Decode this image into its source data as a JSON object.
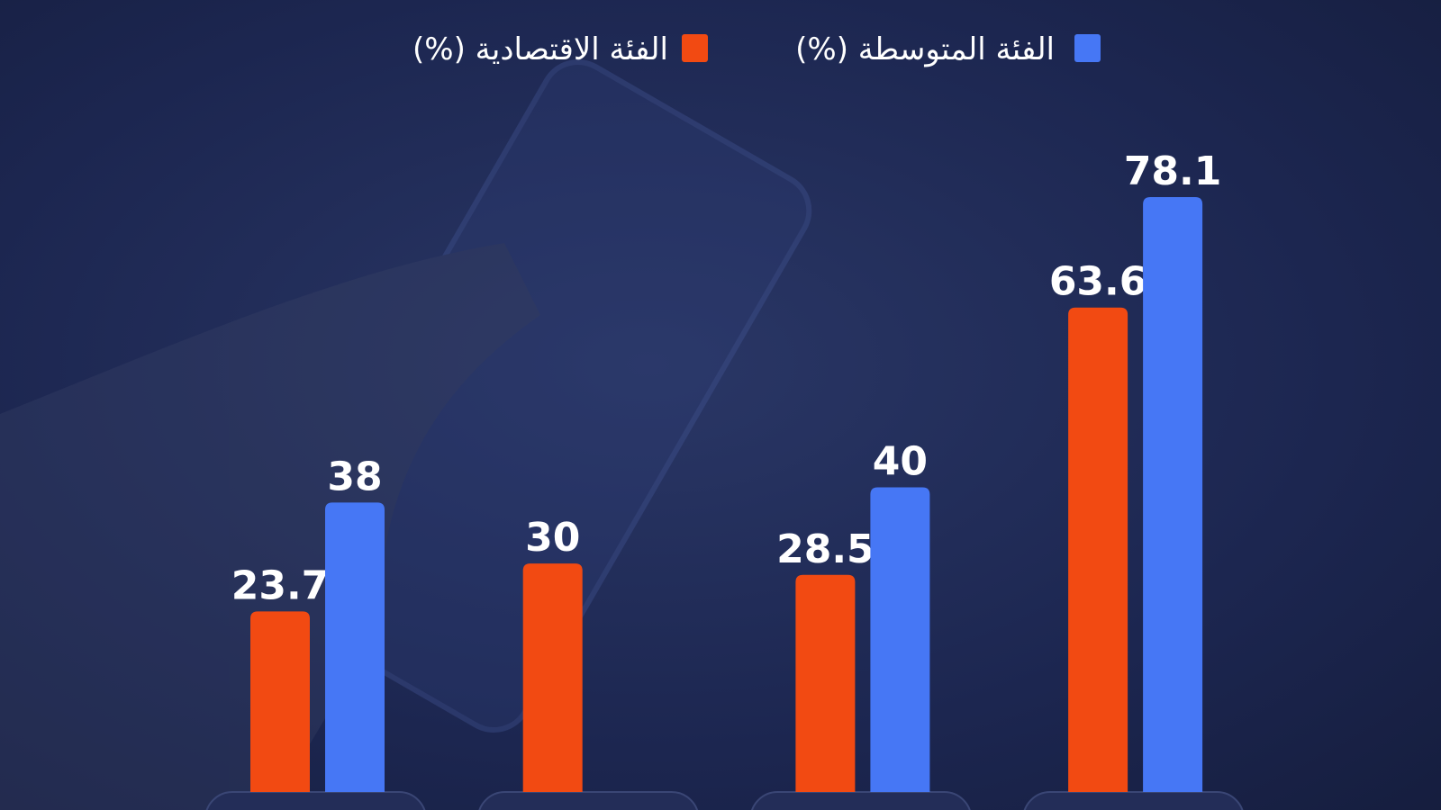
{
  "chart_data": {
    "type": "bar",
    "categories": [
      null,
      null,
      null,
      null
    ],
    "series": [
      {
        "name": "الفئة الاقتصادية (%)",
        "color": "#f24a12",
        "values": [
          23.7,
          30,
          28.5,
          63.6
        ]
      },
      {
        "name": "الفئة المتوسطة (%)",
        "color": "#4677f5",
        "values": [
          38,
          null,
          40,
          78.1
        ]
      }
    ]
  }
}
